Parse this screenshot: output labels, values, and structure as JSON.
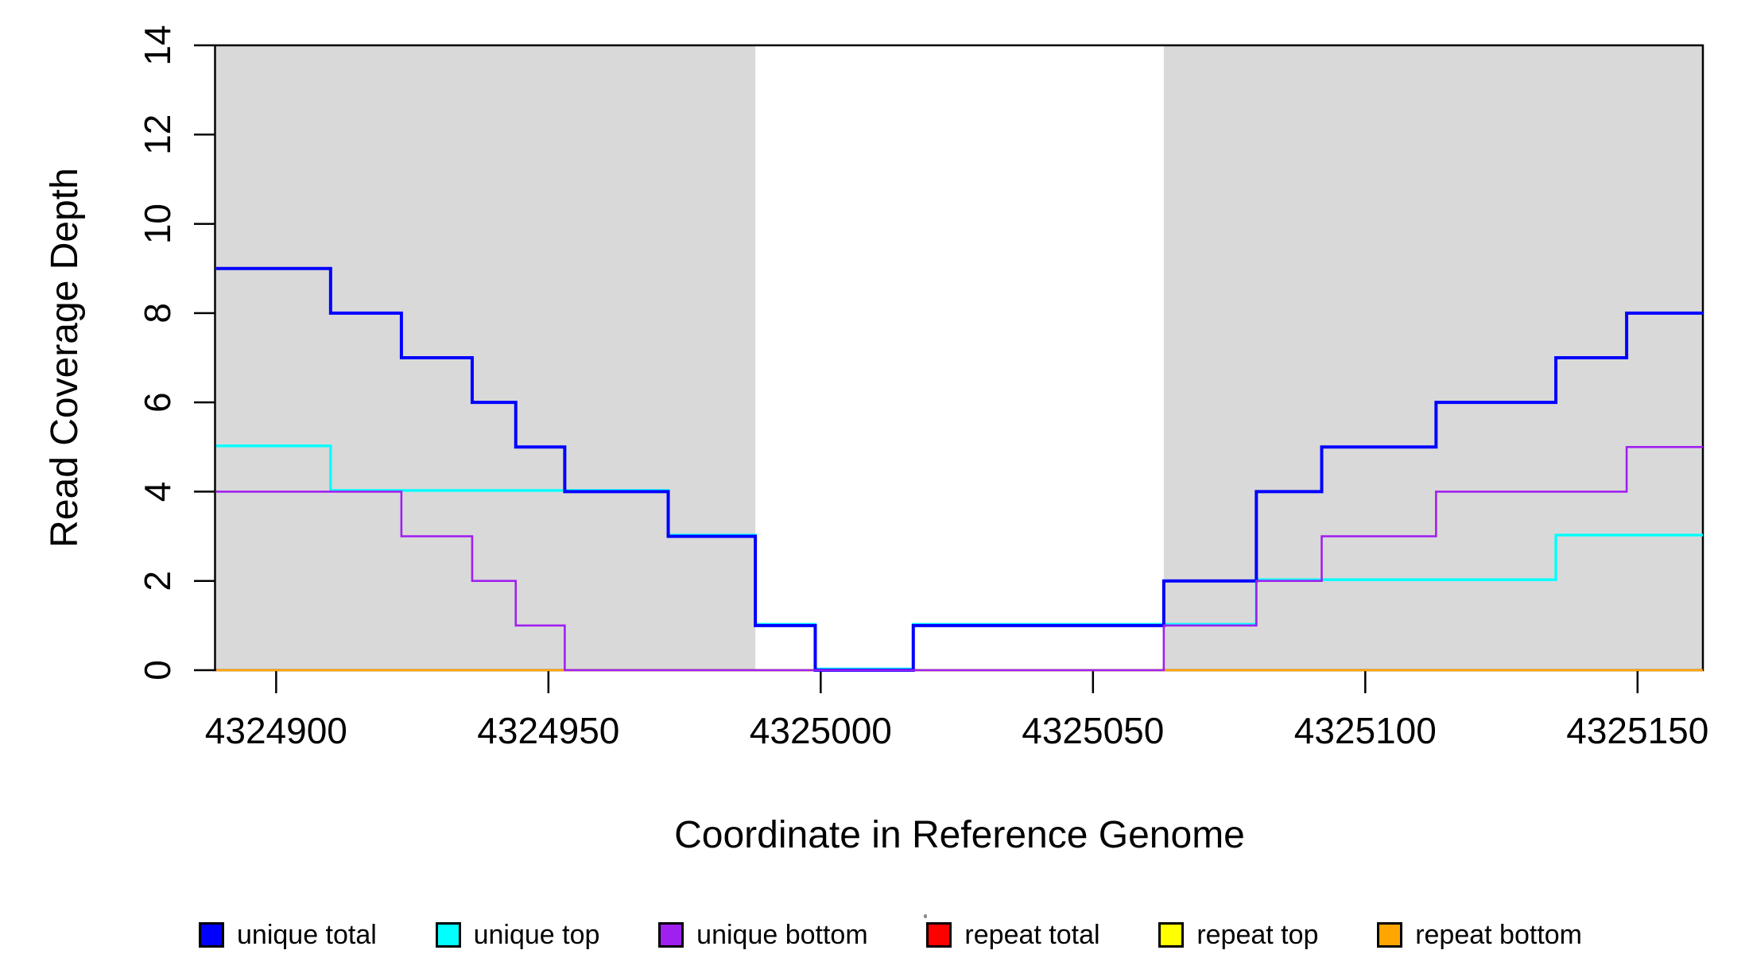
{
  "page": {
    "background": "#FFFFFF",
    "axis_color": "#000000",
    "text_color": "#000000"
  },
  "chart_data": {
    "type": "step",
    "title": "",
    "xlabel": "Coordinate in Reference Genome",
    "ylabel": "Read Coverage Depth",
    "xlim": [
      4324889,
      4325162
    ],
    "ylim": [
      0,
      14
    ],
    "x_ticks": [
      4324900,
      4324950,
      4325000,
      4325050,
      4325100,
      4325150
    ],
    "y_ticks": [
      0,
      2,
      4,
      6,
      8,
      10,
      12,
      14
    ],
    "grid": false,
    "box": true,
    "legend_position": "bottom",
    "shade_color": "#D9D9D9",
    "shaded_regions": [
      {
        "name": "left-shaded-region",
        "from": 4324889,
        "to": 4324988
      },
      {
        "name": "right-shaded-region",
        "from": 4325063,
        "to": 4325162
      }
    ],
    "steps_note": "each step entry is [genome_coordinate, depth]; depth holds from that coordinate until the next entry, series extend across full xlim",
    "series": [
      {
        "label": "unique total",
        "color": "#0000FF",
        "steps": [
          [
            4324889,
            9
          ],
          [
            4324910,
            8
          ],
          [
            4324923,
            7
          ],
          [
            4324936,
            6
          ],
          [
            4324944,
            5
          ],
          [
            4324953,
            4
          ],
          [
            4324972,
            3
          ],
          [
            4324988,
            1
          ],
          [
            4324999,
            0
          ],
          [
            4325017,
            1
          ],
          [
            4325063,
            2
          ],
          [
            4325080,
            4
          ],
          [
            4325092,
            5
          ],
          [
            4325113,
            6
          ],
          [
            4325135,
            7
          ],
          [
            4325148,
            8
          ]
        ]
      },
      {
        "label": "unique top",
        "color": "#00FFFF",
        "steps": [
          [
            4324889,
            5
          ],
          [
            4324910,
            4
          ],
          [
            4324972,
            3
          ],
          [
            4324988,
            1
          ],
          [
            4324999,
            0
          ],
          [
            4325017,
            1
          ],
          [
            4325080,
            2
          ],
          [
            4325135,
            3
          ]
        ]
      },
      {
        "label": "unique bottom",
        "color": "#A020F0",
        "steps": [
          [
            4324889,
            4
          ],
          [
            4324923,
            3
          ],
          [
            4324936,
            2
          ],
          [
            4324944,
            1
          ],
          [
            4324953,
            0
          ],
          [
            4325063,
            1
          ],
          [
            4325080,
            2
          ],
          [
            4325092,
            3
          ],
          [
            4325113,
            4
          ],
          [
            4325148,
            5
          ]
        ]
      },
      {
        "label": "repeat total",
        "color": "#FF0000",
        "steps": [
          [
            4324889,
            0
          ]
        ]
      },
      {
        "label": "repeat top",
        "color": "#FFFF00",
        "steps": [
          [
            4324889,
            0
          ]
        ]
      },
      {
        "label": "repeat bottom",
        "color": "#FFA500",
        "steps": [
          [
            4324889,
            0
          ]
        ]
      }
    ]
  }
}
